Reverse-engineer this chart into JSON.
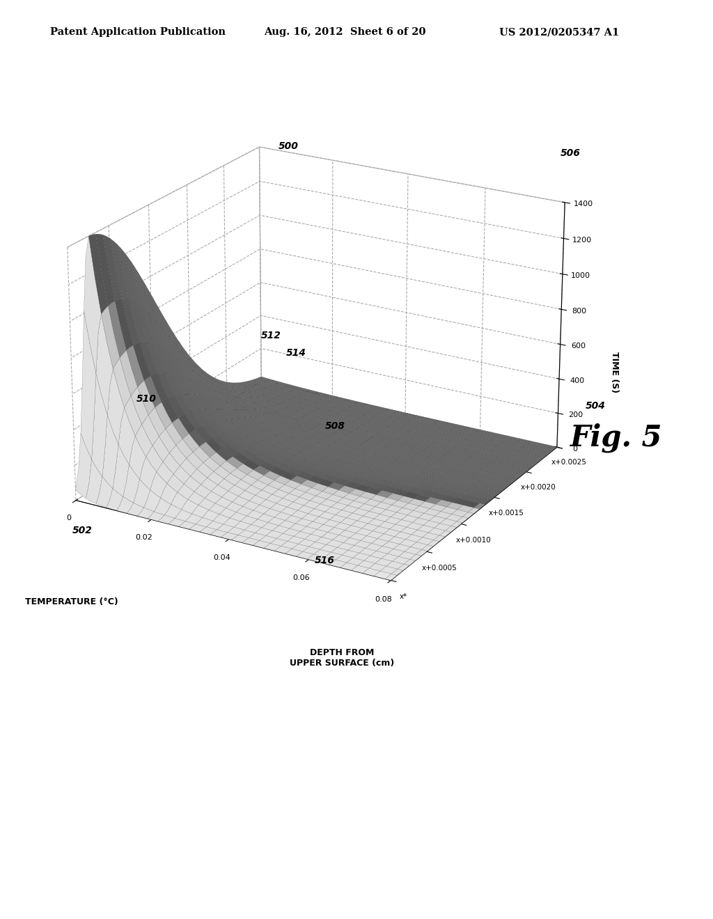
{
  "header_left": "Patent Application Publication",
  "header_center": "Aug. 16, 2012  Sheet 6 of 20",
  "header_right": "US 2012/0205347 A1",
  "fig_label": "Fig. 5",
  "x_label": "DEPTH FROM\nUPPER SURFACE (cm)",
  "y_label": "TEMPERATURE (°C)",
  "z_label": "TIME (S)",
  "depth_ticks": [
    0,
    0.02,
    0.04,
    0.06,
    0.08
  ],
  "temp_ticks": [
    0,
    200,
    400,
    600,
    800,
    1000,
    1200,
    1400
  ],
  "time_tick_vals": [
    0,
    0.0005,
    0.001,
    0.0015,
    0.002,
    0.0025
  ],
  "time_tick_labels": [
    "x*",
    "x+0.0005",
    "x+0.0010",
    "x+0.0015",
    "x+0.0020",
    "x+0.0025"
  ],
  "background_color": "#ffffff",
  "T_max": 1400,
  "T_min": 0,
  "depth_max": 0.08,
  "time_max": 0.0025,
  "n_depth": 60,
  "n_time": 60
}
